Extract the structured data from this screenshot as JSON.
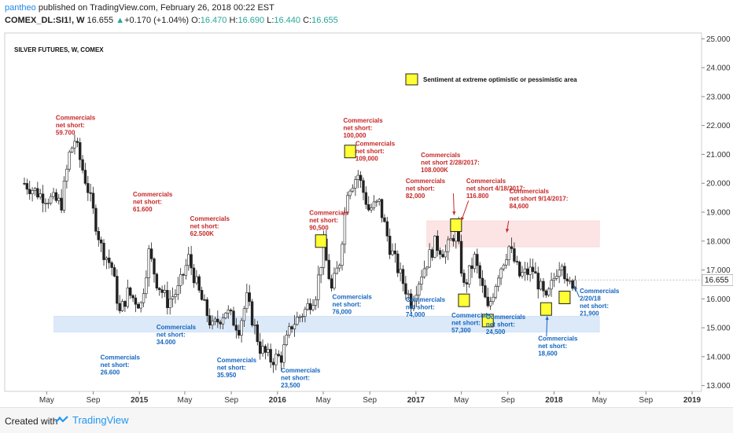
{
  "header": {
    "author": "pantheo",
    "published": " published on TradingView.com, February 26, 2018 00:22 EST",
    "symbol": "COMEX_DL:SI1!, W",
    "last": "16.655",
    "change": "+0.170 (+1.04%)",
    "o_label": "O:",
    "o": "16.470",
    "h_label": "H:",
    "h": "16.690",
    "l_label": "L:",
    "l": "16.440",
    "c_label": "C:",
    "c": "16.655"
  },
  "footer": {
    "created": "Created with",
    "brand": "TradingView"
  },
  "colors": {
    "up": "#26a69a",
    "down": "#ef5350",
    "candle": "#222222",
    "red_text": "#c62828",
    "blue_text": "#1565c0",
    "highlight": "#ffff33",
    "pink_band": "#fce4e4",
    "blue_band": "#dce9f8"
  },
  "chart_data": {
    "type": "candlestick",
    "title": "SILVER FUTURES, W, COMEX",
    "legend": "Sentiment at extreme optimistic or pessimistic area",
    "ylim": [
      12.8,
      25.2
    ],
    "y_ticks": [
      13.0,
      14.0,
      15.0,
      16.0,
      17.0,
      18.0,
      19.0,
      20.0,
      21.0,
      22.0,
      23.0,
      24.0,
      25.0
    ],
    "y_tick_labels": [
      "13.000",
      "14.000",
      "15.000",
      "16.000",
      "17.000",
      "18.000",
      "19.000",
      "20.000",
      "21.000",
      "22.000",
      "23.000",
      "24.000",
      "25.000"
    ],
    "last_price_label": "16.655",
    "x_ticks": [
      {
        "date": "2014-05-01",
        "label": "May"
      },
      {
        "date": "2014-09-01",
        "label": "Sep"
      },
      {
        "date": "2015-01-01",
        "label": "2015"
      },
      {
        "date": "2015-05-01",
        "label": "May"
      },
      {
        "date": "2015-09-01",
        "label": "Sep"
      },
      {
        "date": "2016-01-01",
        "label": "2016"
      },
      {
        "date": "2016-05-01",
        "label": "May"
      },
      {
        "date": "2016-09-01",
        "label": "Sep"
      },
      {
        "date": "2017-01-01",
        "label": "2017"
      },
      {
        "date": "2017-05-01",
        "label": "May"
      },
      {
        "date": "2017-09-01",
        "label": "Sep"
      },
      {
        "date": "2018-01-01",
        "label": "2018"
      },
      {
        "date": "2018-05-01",
        "label": "May"
      },
      {
        "date": "2018-09-01",
        "label": "Sep"
      },
      {
        "date": "2019-01-01",
        "label": "2019"
      }
    ],
    "price_path": [
      {
        "date": "2014-03-03",
        "price": 20.0
      },
      {
        "date": "2014-04-14",
        "price": 19.6
      },
      {
        "date": "2014-06-09",
        "price": 19.3
      },
      {
        "date": "2014-06-30",
        "price": 21.0
      },
      {
        "date": "2014-07-14",
        "price": 21.5
      },
      {
        "date": "2014-08-18",
        "price": 19.8
      },
      {
        "date": "2014-09-22",
        "price": 17.8
      },
      {
        "date": "2014-10-20",
        "price": 17.1
      },
      {
        "date": "2014-11-10",
        "price": 15.5
      },
      {
        "date": "2014-12-01",
        "price": 16.2
      },
      {
        "date": "2015-01-05",
        "price": 15.8
      },
      {
        "date": "2015-01-26",
        "price": 17.6
      },
      {
        "date": "2015-02-16",
        "price": 16.6
      },
      {
        "date": "2015-03-16",
        "price": 15.9
      },
      {
        "date": "2015-04-13",
        "price": 16.3
      },
      {
        "date": "2015-05-11",
        "price": 17.4
      },
      {
        "date": "2015-06-08",
        "price": 16.2
      },
      {
        "date": "2015-07-13",
        "price": 15.0
      },
      {
        "date": "2015-08-17",
        "price": 15.6
      },
      {
        "date": "2015-09-21",
        "price": 15.0
      },
      {
        "date": "2015-10-12",
        "price": 16.0
      },
      {
        "date": "2015-11-16",
        "price": 14.3
      },
      {
        "date": "2015-12-14",
        "price": 13.9
      },
      {
        "date": "2016-01-11",
        "price": 14.0
      },
      {
        "date": "2016-02-08",
        "price": 15.1
      },
      {
        "date": "2016-03-14",
        "price": 15.6
      },
      {
        "date": "2016-04-11",
        "price": 16.2
      },
      {
        "date": "2016-05-02",
        "price": 17.8
      },
      {
        "date": "2016-05-23",
        "price": 16.3
      },
      {
        "date": "2016-06-13",
        "price": 17.3
      },
      {
        "date": "2016-07-04",
        "price": 19.8
      },
      {
        "date": "2016-08-01",
        "price": 20.3
      },
      {
        "date": "2016-08-29",
        "price": 19.1
      },
      {
        "date": "2016-09-26",
        "price": 19.3
      },
      {
        "date": "2016-10-24",
        "price": 17.8
      },
      {
        "date": "2016-11-21",
        "price": 16.8
      },
      {
        "date": "2016-12-19",
        "price": 15.9
      },
      {
        "date": "2017-01-16",
        "price": 16.9
      },
      {
        "date": "2017-02-20",
        "price": 17.9
      },
      {
        "date": "2017-03-20",
        "price": 17.6
      },
      {
        "date": "2017-04-17",
        "price": 18.4
      },
      {
        "date": "2017-05-08",
        "price": 16.4
      },
      {
        "date": "2017-06-05",
        "price": 17.4
      },
      {
        "date": "2017-07-10",
        "price": 15.6
      },
      {
        "date": "2017-08-07",
        "price": 16.9
      },
      {
        "date": "2017-09-04",
        "price": 17.8
      },
      {
        "date": "2017-10-02",
        "price": 16.8
      },
      {
        "date": "2017-11-06",
        "price": 17.0
      },
      {
        "date": "2017-12-11",
        "price": 15.9
      },
      {
        "date": "2018-01-08",
        "price": 17.0
      },
      {
        "date": "2018-01-22",
        "price": 17.4
      },
      {
        "date": "2018-02-05",
        "price": 16.4
      },
      {
        "date": "2018-02-26",
        "price": 16.655
      }
    ],
    "pink_band": {
      "from": "2017-01-30",
      "to": "2018-05-01",
      "low": 17.8,
      "high": 18.7
    },
    "blue_band": {
      "from": "2014-05-20",
      "to": "2018-05-01",
      "low": 14.85,
      "high": 15.4
    },
    "highlights": [
      {
        "date": "2016-04-25",
        "price": 18.0
      },
      {
        "date": "2016-07-11",
        "price": 21.1
      },
      {
        "date": "2017-04-17",
        "price": 18.55
      },
      {
        "date": "2017-05-08",
        "price": 15.95
      },
      {
        "date": "2017-07-10",
        "price": 15.25
      },
      {
        "date": "2017-12-11",
        "price": 15.65
      },
      {
        "date": "2018-01-29",
        "price": 16.05
      }
    ],
    "annotations": [
      {
        "color": "red",
        "date": "2014-05-25",
        "price": 22.2,
        "lines": [
          "Commercials",
          "net short:",
          "59.700"
        ]
      },
      {
        "color": "red",
        "date": "2014-12-15",
        "price": 19.55,
        "lines": [
          "Commercials",
          "net short:",
          " 61.600"
        ]
      },
      {
        "color": "red",
        "date": "2015-05-15",
        "price": 18.7,
        "lines": [
          "Commercials",
          "net short:",
          " 62.500K"
        ]
      },
      {
        "color": "red",
        "date": "2016-03-25",
        "price": 18.9,
        "lines": [
          "Commercials",
          "net short:",
          "90,500"
        ]
      },
      {
        "color": "red",
        "date": "2016-06-23",
        "price": 22.1,
        "lines": [
          "Commercials",
          "net short:",
          "100,000"
        ]
      },
      {
        "color": "red",
        "date": "2016-07-25",
        "price": 21.3,
        "lines": [
          "Commercials",
          "net short:",
          "109,000"
        ]
      },
      {
        "color": "red",
        "date": "2016-12-05",
        "price": 20.0,
        "lines": [
          "Commercials",
          "net short:",
          "82,000"
        ]
      },
      {
        "color": "red",
        "date": "2017-01-14",
        "price": 20.9,
        "lines": [
          "Commercials",
          "net short 2/28/2017:",
          "108.000K"
        ]
      },
      {
        "color": "red",
        "date": "2017-05-14",
        "price": 20.0,
        "lines": [
          "Commercials",
          "net short 4/18/2017:",
          "116.800"
        ]
      },
      {
        "color": "red",
        "date": "2017-09-05",
        "price": 19.65,
        "lines": [
          "Commercials",
          "net short 9/14/2017:",
          "84,600"
        ]
      },
      {
        "color": "blue",
        "date": "2014-09-20",
        "price": 13.9,
        "lines": [
          "Commercials",
          "net short:",
          "26.600"
        ]
      },
      {
        "color": "blue",
        "date": "2015-02-15",
        "price": 14.95,
        "lines": [
          "Commercials",
          "net short:",
          "34.000"
        ]
      },
      {
        "color": "blue",
        "date": "2015-07-25",
        "price": 13.8,
        "lines": [
          "Commercials",
          "net short:",
          "35.950"
        ]
      },
      {
        "color": "blue",
        "date": "2016-01-10",
        "price": 13.45,
        "lines": [
          "Commercials",
          "net short:",
          "23,500"
        ]
      },
      {
        "color": "blue",
        "date": "2016-05-25",
        "price": 16.0,
        "lines": [
          "Commercials",
          "net short:",
          "76,000"
        ]
      },
      {
        "color": "blue",
        "date": "2016-12-05",
        "price": 15.9,
        "lines": [
          "Commercials",
          "net short:",
          "74,000"
        ]
      },
      {
        "color": "blue",
        "date": "2017-04-05",
        "price": 15.35,
        "lines": [
          "Commercials",
          "net short:",
          "57,300"
        ]
      },
      {
        "color": "blue",
        "date": "2017-07-05",
        "price": 15.3,
        "lines": [
          "Commercials",
          "net short:",
          "24,500"
        ]
      },
      {
        "color": "blue",
        "date": "2017-11-20",
        "price": 14.55,
        "lines": [
          "Commercials",
          "net short:",
          "18,600"
        ]
      },
      {
        "color": "blue",
        "date": "2018-03-10",
        "price": 16.2,
        "lines": [
          "Commercials",
          "2/20/18",
          "net short:",
          "21,900"
        ]
      }
    ],
    "arrows": [
      {
        "color": "red",
        "from": {
          "date": "2017-04-10",
          "price": 19.65
        },
        "to": {
          "date": "2017-04-12",
          "price": 18.9
        }
      },
      {
        "color": "red",
        "from": {
          "date": "2017-05-20",
          "price": 19.4
        },
        "to": {
          "date": "2017-05-01",
          "price": 18.7
        }
      },
      {
        "color": "red",
        "from": {
          "date": "2017-09-03",
          "price": 18.7
        },
        "to": {
          "date": "2017-08-29",
          "price": 18.3
        }
      },
      {
        "color": "blue",
        "from": {
          "date": "2017-12-12",
          "price": 14.7
        },
        "to": {
          "date": "2017-12-14",
          "price": 15.4
        }
      },
      {
        "color": "blue",
        "from": {
          "date": "2018-03-09",
          "price": 16.05
        },
        "to": {
          "date": "2018-02-24",
          "price": 16.45
        }
      }
    ]
  }
}
